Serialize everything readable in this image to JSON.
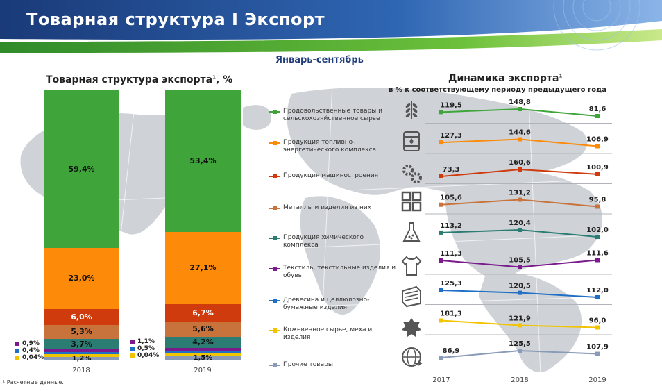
{
  "header": {
    "title": "Товарная структура I Экспорт",
    "period": "Январь-сентябрь"
  },
  "left_chart": {
    "title": "Товарная структура экспорта",
    "title_sup": "1",
    "title_suffix": ", %"
  },
  "right_chart": {
    "title": "Динамика экспорта",
    "title_sup": "1",
    "subtitle": "в % к соответствующему периоду предыдущего года"
  },
  "footnote": "¹ Расчетные данные.",
  "colors": {
    "food": "#3fa53a",
    "fuel": "#fd8b09",
    "machinery": "#cf3b0c",
    "metals": "#c8733c",
    "chemical": "#2b7d73",
    "textile": "#7a1a8c",
    "wood": "#1f6fc6",
    "leather": "#f2c400",
    "other": "#8a9bb8"
  },
  "chart_data": [
    {
      "type": "bar",
      "stacked": true,
      "title": "Товарная структура экспорта, %",
      "categories": [
        "2018",
        "2019"
      ],
      "series": [
        {
          "name": "Продовольственные товары и сельскохозяйственное сырье",
          "values": [
            59.4,
            53.4
          ],
          "labels": [
            "59,4%",
            "53,4%"
          ]
        },
        {
          "name": "Продукция топливно-энергетического комплекса",
          "values": [
            23.0,
            27.1
          ],
          "labels": [
            "23,0%",
            "27,1%"
          ]
        },
        {
          "name": "Продукция машиностроения",
          "values": [
            6.0,
            6.7
          ],
          "labels": [
            "6,0%",
            "6,7%"
          ]
        },
        {
          "name": "Металлы и изделия из них",
          "values": [
            5.3,
            5.6
          ],
          "labels": [
            "5,3%",
            "5,6%"
          ]
        },
        {
          "name": "Продукция химического комплекса",
          "values": [
            3.7,
            4.2
          ],
          "labels": [
            "3,7%",
            "4,2%"
          ]
        },
        {
          "name": "Текстиль, текстильные изделия и обувь",
          "values": [
            0.9,
            1.1
          ],
          "labels": [
            "0,9%",
            "1,1%"
          ]
        },
        {
          "name": "Древесина и целлюлозно-бумажные изделия",
          "values": [
            0.4,
            0.5
          ],
          "labels": [
            "0,4%",
            "0,5%"
          ]
        },
        {
          "name": "Кожевенное сырье, меха и изделия",
          "values": [
            0.04,
            0.04
          ],
          "labels": [
            "0,04%",
            "0,04%"
          ]
        },
        {
          "name": "Прочие товары",
          "values": [
            1.2,
            1.5
          ],
          "labels": [
            "1,2%",
            "1,5%"
          ]
        }
      ]
    },
    {
      "type": "line",
      "title": "Динамика экспорта",
      "subtitle": "в % к соответствующему периоду предыдущего года",
      "x": [
        "2017",
        "2018",
        "2019"
      ],
      "series": [
        {
          "name": "Продовольственные товары и сельскохозяйственное сырье",
          "values": [
            119.5,
            148.8,
            81.6
          ],
          "labels": [
            "119,5",
            "148,8",
            "81,6"
          ],
          "icon": "wheat-icon"
        },
        {
          "name": "Продукция топливно-энергетического комплекса",
          "values": [
            127.3,
            144.6,
            106.9
          ],
          "labels": [
            "127,3",
            "144,6",
            "106,9"
          ],
          "icon": "oil-barrel-icon"
        },
        {
          "name": "Продукция машиностроения",
          "values": [
            73.3,
            160.6,
            100.9
          ],
          "labels": [
            "73,3",
            "160,6",
            "100,9"
          ],
          "icon": "gears-icon"
        },
        {
          "name": "Металлы и изделия из них",
          "values": [
            105.6,
            131.2,
            95.8
          ],
          "labels": [
            "105,6",
            "131,2",
            "95,8"
          ],
          "icon": "metal-grid-icon"
        },
        {
          "name": "Продукция химического комплекса",
          "values": [
            113.2,
            120.4,
            102.0
          ],
          "labels": [
            "113,2",
            "120,4",
            "102,0"
          ],
          "icon": "flask-icon"
        },
        {
          "name": "Текстиль, текстильные изделия и обувь",
          "values": [
            111.3,
            105.5,
            111.6
          ],
          "labels": [
            "111,3",
            "105,5",
            "111,6"
          ],
          "icon": "shirt-icon"
        },
        {
          "name": "Древесина и целлюлозно-бумажные изделия",
          "values": [
            125.3,
            120.5,
            112.0
          ],
          "labels": [
            "125,3",
            "120,5",
            "112,0"
          ],
          "icon": "wood-icon"
        },
        {
          "name": "Кожевенное сырье, меха и изделия",
          "values": [
            181.3,
            121.9,
            96.0
          ],
          "labels": [
            "181,3",
            "121,9",
            "96,0"
          ],
          "icon": "hide-icon"
        },
        {
          "name": "Прочие товары",
          "values": [
            86.9,
            125.5,
            107.9
          ],
          "labels": [
            "86,9",
            "125,5",
            "107,9"
          ],
          "icon": "globe-icon"
        }
      ]
    }
  ]
}
